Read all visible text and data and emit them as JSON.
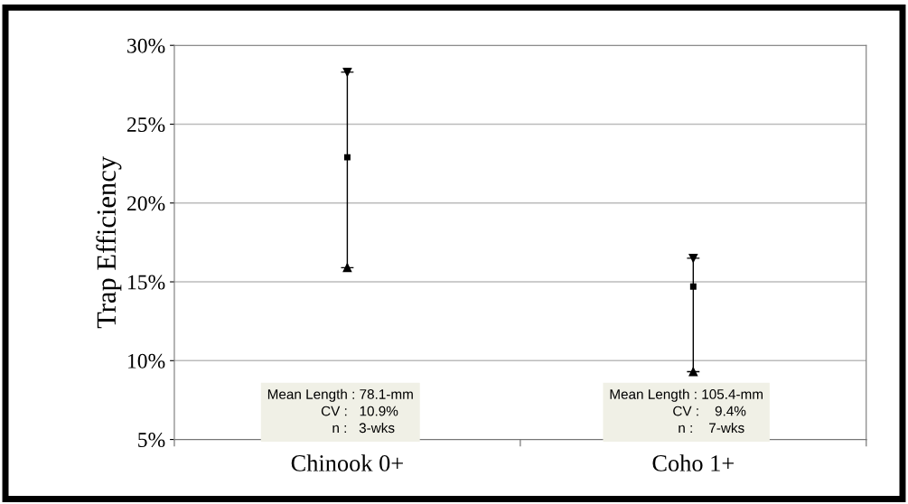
{
  "chart_data": {
    "type": "scatter",
    "ylabel": "Trap Efficiency",
    "categories": [
      "Chinook 0+",
      "Coho 1+"
    ],
    "values": [
      22.9,
      14.7
    ],
    "errors": [
      [
        15.9,
        28.3
      ],
      [
        9.3,
        16.5
      ]
    ],
    "color": "#000000",
    "marker": "square",
    "ylim": [
      5,
      30
    ],
    "yticks": [
      {
        "value": 5,
        "label": "5%"
      },
      {
        "value": 10,
        "label": "10%"
      },
      {
        "value": 15,
        "label": "15%"
      },
      {
        "value": 20,
        "label": "20%"
      },
      {
        "value": 25,
        "label": "25%"
      },
      {
        "value": 30,
        "label": "30%"
      }
    ],
    "grid": "y",
    "legend": false,
    "annotations": [
      "Mean Length : 78.1-mm\n          CV :   10.9%\n            n :   3-wks",
      "Mean Length : 105.4-mm\n            CV :    9.4%\n             n :    7-wks"
    ]
  }
}
